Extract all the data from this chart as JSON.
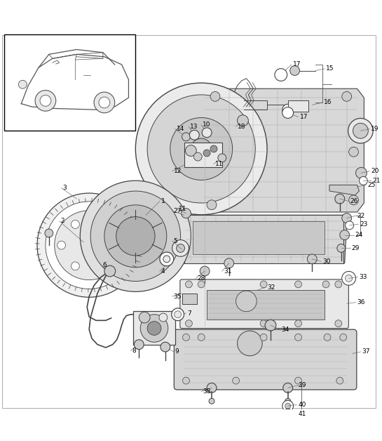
{
  "bg_color": "#ffffff",
  "fig_width": 5.45,
  "fig_height": 6.28,
  "dpi": 100,
  "line_color": "#444444",
  "text_color": "#000000",
  "light_gray": "#e8e8e8",
  "mid_gray": "#cccccc",
  "dark_gray": "#999999",
  "font_size": 6.5
}
